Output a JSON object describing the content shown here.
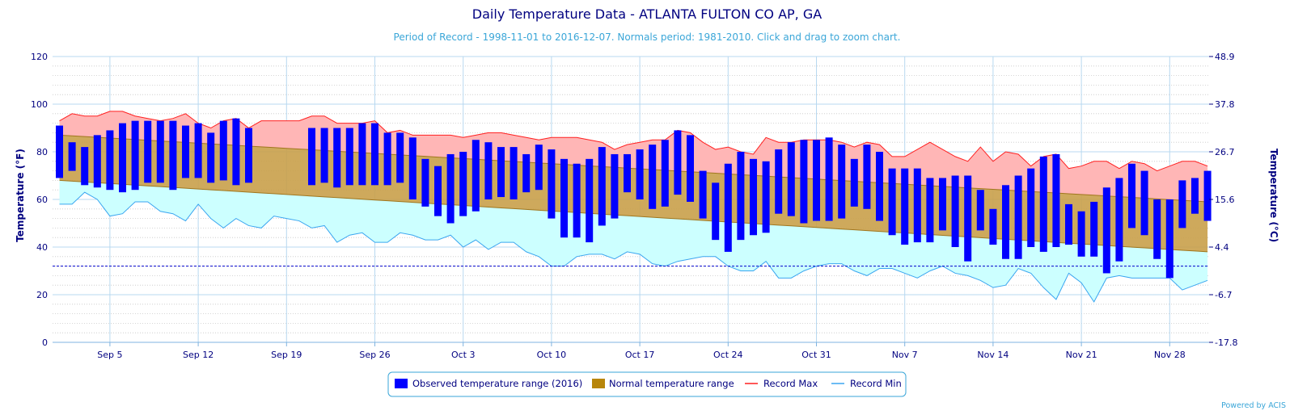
{
  "title": "Daily Temperature Data - ATLANTA FULTON CO AP, GA",
  "subtitle": "Period of Record - 1998-11-01 to 2016-12-07. Normals period: 1981-2010. Click and drag to zoom chart.",
  "credit": "Powered by ACIS",
  "colors": {
    "observed": "#0000ff",
    "normal_fill": "#c9a04a",
    "normal_line": "#a0761e",
    "record_max_line": "#ff2020",
    "record_max_fill": "#ffb6b6",
    "record_min_line": "#3aa6f0",
    "record_min_fill": "#ccffff",
    "freezing_line": "#0000cc",
    "grid": "#b8d8f0",
    "axis_text": "#000080"
  },
  "legend": {
    "observed": "Observed temperature range (2016)",
    "normal": "Normal temperature range",
    "record_max": "Record Max",
    "record_min": "Record Min"
  },
  "chart_data": {
    "type": "bar",
    "x_start_date": "2016-09-01",
    "x_tick_labels": [
      "Sep 5",
      "Sep 12",
      "Sep 19",
      "Sep 26",
      "Oct 3",
      "Oct 10",
      "Oct 17",
      "Oct 24",
      "Oct 31",
      "Nov 7",
      "Nov 14",
      "Nov 21",
      "Nov 28"
    ],
    "xlabel": "",
    "ylabel": "Temperature (°F)",
    "ylabel_right": "Temperature (°C)",
    "ylim": [
      0,
      120
    ],
    "y_ticks": [
      0,
      20,
      40,
      60,
      80,
      100,
      120
    ],
    "y_ticks_right": [
      "-17.8",
      "-6.7",
      "4.4",
      "15.6",
      "26.7",
      "37.8",
      "48.9"
    ],
    "freezing_line": 32,
    "grid": true,
    "legend_position": "bottom-center",
    "normals": {
      "high_start": 87,
      "high_end": 59,
      "low_start": 68,
      "low_end": 38
    },
    "observed_high": [
      91,
      84,
      82,
      87,
      89,
      92,
      93,
      93,
      93,
      93,
      91,
      92,
      88,
      93,
      94,
      90,
      null,
      null,
      null,
      null,
      90,
      90,
      90,
      90,
      92,
      92,
      88,
      88,
      86,
      77,
      74,
      79,
      80,
      85,
      84,
      82,
      82,
      79,
      83,
      81,
      77,
      75,
      77,
      82,
      79,
      79,
      81,
      83,
      85,
      89,
      87,
      72,
      67,
      75,
      80,
      77,
      76,
      81,
      84,
      85,
      85,
      86,
      83,
      77,
      83,
      80,
      73,
      73,
      73,
      69,
      69,
      70,
      70,
      64,
      56,
      66,
      70,
      73,
      78,
      79,
      58,
      55,
      59,
      65,
      69,
      75,
      72,
      60,
      60,
      68,
      69,
      72
    ],
    "observed_low": [
      69,
      72,
      66,
      65,
      64,
      63,
      64,
      67,
      67,
      64,
      69,
      69,
      67,
      68,
      66,
      67,
      null,
      null,
      null,
      null,
      66,
      67,
      65,
      66,
      66,
      66,
      66,
      67,
      60,
      57,
      53,
      50,
      53,
      55,
      60,
      61,
      60,
      63,
      64,
      52,
      44,
      44,
      42,
      49,
      52,
      63,
      60,
      56,
      57,
      62,
      59,
      52,
      43,
      38,
      43,
      45,
      46,
      54,
      53,
      50,
      51,
      51,
      52,
      57,
      56,
      51,
      45,
      41,
      42,
      42,
      47,
      40,
      34,
      47,
      41,
      35,
      35,
      40,
      38,
      40,
      41,
      36,
      36,
      29,
      34,
      48,
      45,
      35,
      27,
      48,
      54,
      51
    ],
    "record_max": [
      93,
      96,
      95,
      95,
      97,
      97,
      95,
      94,
      93,
      94,
      96,
      92,
      90,
      93,
      94,
      90,
      93,
      93,
      93,
      93,
      95,
      95,
      92,
      92,
      92,
      93,
      88,
      89,
      87,
      87,
      87,
      87,
      86,
      87,
      88,
      88,
      87,
      86,
      85,
      86,
      86,
      86,
      85,
      84,
      81,
      83,
      84,
      85,
      85,
      89,
      88,
      84,
      81,
      82,
      80,
      79,
      86,
      84,
      84,
      85,
      85,
      85,
      84,
      82,
      84,
      83,
      78,
      78,
      81,
      84,
      81,
      78,
      76,
      82,
      76,
      80,
      79,
      74,
      78,
      79,
      73,
      74,
      76,
      76,
      73,
      76,
      75,
      72,
      74,
      76,
      76,
      74
    ],
    "record_min": [
      58,
      58,
      63,
      60,
      53,
      54,
      59,
      59,
      55,
      54,
      51,
      58,
      52,
      48,
      52,
      49,
      48,
      53,
      52,
      51,
      48,
      49,
      42,
      45,
      46,
      42,
      42,
      46,
      45,
      43,
      43,
      45,
      40,
      43,
      39,
      42,
      42,
      38,
      36,
      32,
      32,
      36,
      37,
      37,
      35,
      38,
      37,
      33,
      32,
      34,
      35,
      36,
      36,
      32,
      30,
      30,
      34,
      27,
      27,
      30,
      32,
      33,
      33,
      30,
      28,
      31,
      31,
      29,
      27,
      30,
      32,
      29,
      28,
      26,
      23,
      24,
      31,
      29,
      23,
      18,
      29,
      25,
      17,
      27,
      28,
      27,
      27,
      27,
      27,
      22,
      24,
      26
    ]
  }
}
